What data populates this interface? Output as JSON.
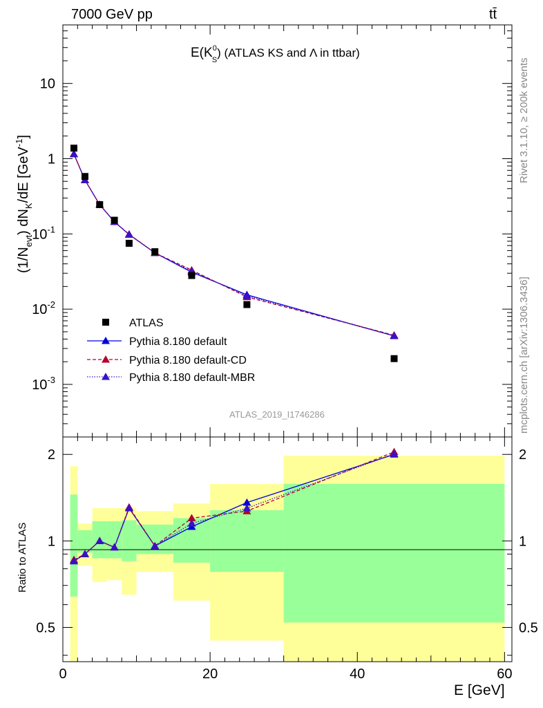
{
  "header": {
    "energy_label": "7000 GeV pp",
    "process_label": "tt̄",
    "plot_title_main": "E(K",
    "plot_title_sup": "0",
    "plot_title_sub": "S",
    "plot_title_rest": ") (ATLAS KS and Λ in ttbar)",
    "analysis_id": "ATLAS_2019_I1746286"
  },
  "side_text": {
    "rivet": "Rivet 3.1.10, ≥ 200k events",
    "mcplots": "mcplots.cern.ch [arXiv:1306.3436]"
  },
  "axes": {
    "main_ylabel": "(1/N_evt) dN_K/dE [GeV^-1]",
    "ratio_ylabel": "Ratio to ATLAS",
    "xlabel": "E [GeV]"
  },
  "legend": [
    {
      "label": "ATLAS",
      "kind": "data"
    },
    {
      "label": "Pythia 8.180 default",
      "kind": "default"
    },
    {
      "label": "Pythia 8.180 default-CD",
      "kind": "cd"
    },
    {
      "label": "Pythia 8.180 default-MBR",
      "kind": "mbr"
    }
  ],
  "colors": {
    "data": "#000000",
    "default": "#0000dd",
    "cd": "#b3002a",
    "mbr": "#3a10c8",
    "band_yellow": "#ffff99",
    "band_green": "#99ff99"
  },
  "chart_data": [
    {
      "type": "scatter",
      "panel": "main",
      "xlim": [
        0,
        61
      ],
      "ylim": [
        0.0002,
        60
      ],
      "yscale": "log",
      "ytick_labels": [
        "10",
        "1",
        "10^-1",
        "10^-2",
        "10^-3"
      ],
      "ytick_values": [
        10,
        1,
        0.1,
        0.01,
        0.001
      ],
      "xtick_values": [
        0,
        20,
        40,
        60
      ],
      "series": [
        {
          "name": "ATLAS",
          "style": "data",
          "x": [
            1.5,
            3,
            5,
            7,
            9,
            12.5,
            17.5,
            25,
            45
          ],
          "y": [
            1.38,
            0.58,
            0.245,
            0.152,
            0.075,
            0.058,
            0.028,
            0.0115,
            0.0022
          ]
        },
        {
          "name": "Pythia 8.180 default",
          "style": "default",
          "x": [
            1.5,
            3,
            5,
            7,
            9,
            12.5,
            17.5,
            25,
            45
          ],
          "y": [
            1.15,
            0.52,
            0.245,
            0.145,
            0.098,
            0.056,
            0.031,
            0.0155,
            0.0044
          ]
        },
        {
          "name": "Pythia 8.180 default-CD",
          "style": "cd",
          "x": [
            1.5,
            3,
            5,
            7,
            9,
            12.5,
            17.5,
            25,
            45
          ],
          "y": [
            1.16,
            0.52,
            0.245,
            0.145,
            0.099,
            0.056,
            0.033,
            0.0145,
            0.0045
          ]
        },
        {
          "name": "Pythia 8.180 default-MBR",
          "style": "mbr",
          "x": [
            1.5,
            3,
            5,
            7,
            9,
            12.5,
            17.5,
            25,
            45
          ],
          "y": [
            1.15,
            0.52,
            0.245,
            0.145,
            0.098,
            0.056,
            0.032,
            0.015,
            0.0044
          ]
        }
      ]
    },
    {
      "type": "line",
      "panel": "ratio",
      "xlim": [
        0,
        61
      ],
      "ylim": [
        0.38,
        2.3
      ],
      "yscale": "log",
      "ytick_labels": [
        "2",
        "1",
        "0.5"
      ],
      "ytick_values": [
        2,
        1,
        0.5
      ],
      "xtick_labels": [
        "0",
        "20",
        "40",
        "60"
      ],
      "xtick_values": [
        0,
        20,
        40,
        60
      ],
      "bands": [
        {
          "x0": 1,
          "x1": 2,
          "g_lo": 0.64,
          "g_hi": 1.45,
          "y_lo": 0.35,
          "y_hi": 1.82
        },
        {
          "x0": 2,
          "x1": 4,
          "g_lo": 0.91,
          "g_hi": 1.09,
          "y_lo": 0.82,
          "y_hi": 1.15
        },
        {
          "x0": 4,
          "x1": 6,
          "g_lo": 0.87,
          "g_hi": 1.17,
          "y_lo": 0.72,
          "y_hi": 1.3
        },
        {
          "x0": 6,
          "x1": 8,
          "g_lo": 0.87,
          "g_hi": 1.17,
          "y_lo": 0.73,
          "y_hi": 1.3
        },
        {
          "x0": 8,
          "x1": 10,
          "g_lo": 0.85,
          "g_hi": 1.18,
          "y_lo": 0.65,
          "y_hi": 1.3
        },
        {
          "x0": 10,
          "x1": 15,
          "g_lo": 0.9,
          "g_hi": 1.14,
          "y_lo": 0.78,
          "y_hi": 1.27
        },
        {
          "x0": 15,
          "x1": 20,
          "g_lo": 0.84,
          "g_hi": 1.2,
          "y_lo": 0.62,
          "y_hi": 1.35
        },
        {
          "x0": 20,
          "x1": 30,
          "g_lo": 0.78,
          "g_hi": 1.28,
          "y_lo": 0.45,
          "y_hi": 1.58
        },
        {
          "x0": 30,
          "x1": 60,
          "g_lo": 0.52,
          "g_hi": 1.58,
          "y_lo": 0.35,
          "y_hi": 1.98
        }
      ],
      "series": [
        {
          "name": "Pythia 8.180 default",
          "style": "default",
          "x": [
            1.5,
            3,
            5,
            7,
            9,
            12.5,
            17.5,
            25,
            45
          ],
          "y": [
            0.85,
            0.9,
            1.0,
            0.95,
            1.3,
            0.96,
            1.12,
            1.36,
            2.0
          ]
        },
        {
          "name": "Pythia 8.180 default-CD",
          "style": "cd",
          "x": [
            1.5,
            3,
            5,
            7,
            9,
            12.5,
            17.5,
            25,
            45
          ],
          "y": [
            0.86,
            0.9,
            1.0,
            0.95,
            1.31,
            0.96,
            1.2,
            1.27,
            2.04
          ]
        },
        {
          "name": "Pythia 8.180 default-MBR",
          "style": "mbr",
          "x": [
            1.5,
            3,
            5,
            7,
            9,
            12.5,
            17.5,
            25,
            45
          ],
          "y": [
            0.85,
            0.9,
            1.0,
            0.95,
            1.3,
            0.96,
            1.15,
            1.3,
            2.01
          ]
        }
      ]
    }
  ]
}
